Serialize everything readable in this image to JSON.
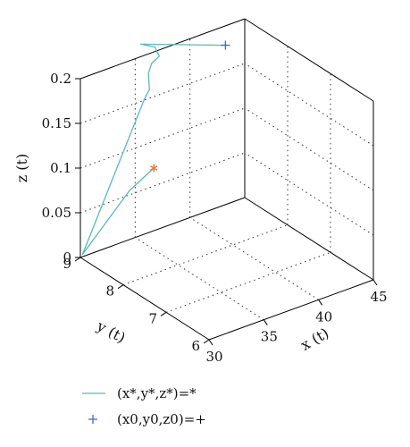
{
  "chart_data": {
    "type": "line",
    "projection": "3d",
    "title": "",
    "xlabel": "x (t)",
    "ylabel": "y (t)",
    "zlabel": "z (t)",
    "xlim": [
      30,
      45
    ],
    "ylim": [
      6,
      9
    ],
    "zlim": [
      0,
      0.2
    ],
    "x_ticks": [
      "30",
      "35",
      "40",
      "45"
    ],
    "y_ticks": [
      "6",
      "7",
      "8",
      "9"
    ],
    "z_ticks": [
      "0",
      "0.05",
      "0.1",
      "0.15",
      "0.2"
    ],
    "grid": true,
    "legend_position": "bottom-left",
    "series": [
      {
        "name": "(x*,y*,z*)=*",
        "color": "#5bb8b8",
        "points": [
          {
            "x": 40.5,
            "y": 8.3,
            "z": 0.212
          },
          {
            "x": 35.5,
            "y": 9.0,
            "z": 0.214
          },
          {
            "x": 36.8,
            "y": 9.0,
            "z": 0.205
          },
          {
            "x": 37.2,
            "y": 9.0,
            "z": 0.193
          },
          {
            "x": 36.5,
            "y": 9.0,
            "z": 0.188
          },
          {
            "x": 36.2,
            "y": 9.0,
            "z": 0.178
          },
          {
            "x": 36.3,
            "y": 9.0,
            "z": 0.16
          },
          {
            "x": 35.8,
            "y": 9.0,
            "z": 0.15
          },
          {
            "x": 30.0,
            "y": 8.95,
            "z": 0.005
          },
          {
            "x": 34.5,
            "y": 9.0,
            "z": 0.055
          },
          {
            "x": 36.7,
            "y": 9.0,
            "z": 0.07
          }
        ]
      },
      {
        "name": "(x0,y0,z0)=+",
        "color": "#3a6fc4",
        "marker": "+",
        "points": [
          {
            "x": 40.5,
            "y": 8.3,
            "z": 0.212
          }
        ]
      },
      {
        "marker": "*",
        "color": "#e8743b",
        "points": [
          {
            "x": 36.7,
            "y": 9.0,
            "z": 0.07
          }
        ]
      }
    ]
  }
}
